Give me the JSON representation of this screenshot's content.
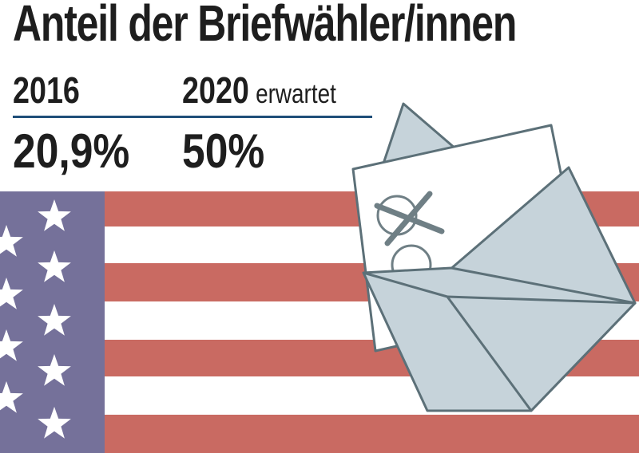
{
  "title": "Anteil der Briefwähler/innen",
  "columns": [
    {
      "year": "2016",
      "note": "",
      "value": "20,9%"
    },
    {
      "year": "2020",
      "note": "erwartet",
      "value": "50%"
    }
  ],
  "colors": {
    "text": "#1e1e1e",
    "rule": "#1f4e79",
    "flag_stripe_red": "#c96a62",
    "flag_canton": "#75719a",
    "envelope_fill": "#c6d3da",
    "envelope_stroke": "#5c7078",
    "ballot_mark": "#6f7f85"
  },
  "icons": [
    "us-flag-icon",
    "envelope-icon",
    "ballot-icon",
    "ballot-cross-icon"
  ]
}
